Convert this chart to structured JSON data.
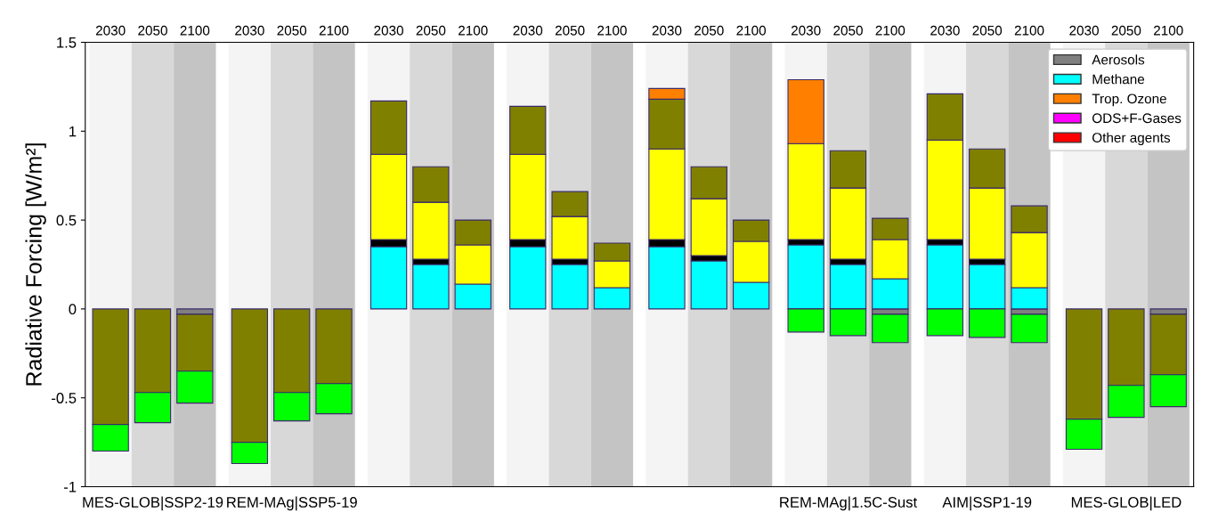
{
  "chart_data": {
    "type": "bar",
    "stacked": true,
    "ylabel": "Radiative Forcing [W/m²]",
    "categories": [
      "2030",
      "2050",
      "2100",
      "2030",
      "2050",
      "2100",
      "2030",
      "2050",
      "2100",
      "2030",
      "2050",
      "2100",
      "2030",
      "2050",
      "2100",
      "2030",
      "2050",
      "2100",
      "2030",
      "2050",
      "2100",
      "2030",
      "2050",
      "2100"
    ],
    "series": [
      {
        "name": "Aerosols",
        "color": "#808080",
        "values": [
          null,
          null,
          -0.03,
          null,
          null,
          null,
          null,
          null,
          null,
          null,
          null,
          null,
          null,
          null,
          null,
          null,
          null,
          -0.03,
          null,
          null,
          -0.03,
          null,
          null,
          -0.03
        ]
      },
      {
        "name": "Methane",
        "color": "#00ffff",
        "values": [
          null,
          null,
          null,
          null,
          null,
          null,
          0.35,
          0.25,
          0.14,
          0.35,
          0.25,
          0.12,
          0.35,
          0.27,
          0.15,
          0.36,
          0.25,
          0.17,
          0.36,
          0.25,
          0.12,
          null,
          null,
          null
        ]
      },
      {
        "color": "#000000",
        "values": [
          null,
          null,
          null,
          null,
          null,
          null,
          0.04,
          0.03,
          null,
          0.04,
          0.03,
          null,
          0.04,
          0.03,
          null,
          0.03,
          0.03,
          null,
          0.03,
          0.03,
          null,
          null,
          null,
          null
        ]
      },
      {
        "color": "#ffff00",
        "values": [
          null,
          null,
          null,
          null,
          null,
          null,
          0.48,
          0.32,
          0.22,
          0.48,
          0.24,
          0.15,
          0.51,
          0.32,
          0.23,
          0.54,
          0.4,
          0.22,
          0.56,
          0.4,
          0.31,
          null,
          null,
          null
        ]
      },
      {
        "color": "#808000",
        "values": [
          -0.65,
          -0.47,
          -0.32,
          -0.75,
          -0.47,
          -0.42,
          0.3,
          0.2,
          0.14,
          0.27,
          0.14,
          0.1,
          0.28,
          0.18,
          0.12,
          null,
          0.21,
          0.12,
          0.26,
          0.22,
          0.15,
          -0.62,
          -0.43,
          -0.34
        ]
      },
      {
        "name": "Trop. Ozone",
        "color": "#ff8000",
        "values": [
          null,
          null,
          null,
          null,
          null,
          null,
          null,
          null,
          null,
          null,
          null,
          null,
          0.06,
          null,
          null,
          0.36,
          null,
          null,
          null,
          null,
          null,
          null,
          null,
          null
        ]
      },
      {
        "color": "#00ff00",
        "values": [
          -0.15,
          -0.17,
          -0.18,
          -0.12,
          -0.16,
          -0.17,
          null,
          null,
          null,
          null,
          null,
          null,
          null,
          null,
          null,
          -0.13,
          -0.15,
          -0.16,
          -0.15,
          -0.16,
          -0.16,
          -0.17,
          -0.18,
          -0.18
        ]
      },
      {
        "name": "ODS+F-Gases",
        "color": "#ff00ff",
        "values": [
          null,
          null,
          null,
          null,
          null,
          null,
          null,
          null,
          null,
          null,
          null,
          null,
          null,
          null,
          null,
          null,
          null,
          null,
          null,
          null,
          null,
          null,
          null,
          null
        ]
      },
      {
        "name": "Other agents",
        "color": "#ff0000",
        "values": [
          null,
          null,
          null,
          null,
          null,
          null,
          null,
          null,
          null,
          null,
          null,
          null,
          null,
          null,
          null,
          null,
          null,
          null,
          null,
          null,
          null,
          null,
          null,
          null
        ]
      }
    ],
    "annotations": [
      "MES-GLOB|SSP2-19",
      "REM-MAg|SSP5-19",
      "REM-MAg|1.5C-Sust",
      "AIM|SSP1-19",
      "MES-GLOB|LED"
    ],
    "ylim": [
      -1,
      1.5
    ],
    "yticks": [
      -1,
      -0.5,
      0,
      0.5,
      1,
      1.5
    ],
    "grid": false,
    "legend": "top right"
  }
}
